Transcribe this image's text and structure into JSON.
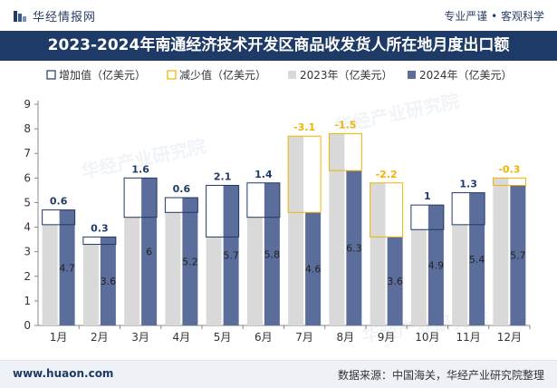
{
  "header": {
    "brand": "华经情报网",
    "tagline": "专业严谨 • 客观科学"
  },
  "title": "2023-2024年南通经济技术开发区商品收发货人所在地月度出口额",
  "footer": {
    "website": "www.huaon.com",
    "source": "数据来源：中国海关，华经产业研究院整理"
  },
  "colors": {
    "bar2023": "#d9d9d9",
    "bar2024": "#5b6d9a",
    "increase": "#1e3a66",
    "decrease": "#f0b400",
    "title_bg": "#1e3a66"
  },
  "chart_data": {
    "type": "bar",
    "categories": [
      "1月",
      "2月",
      "3月",
      "4月",
      "5月",
      "6月",
      "7月",
      "8月",
      "9月",
      "10月",
      "11月",
      "12月"
    ],
    "series": [
      {
        "name": "2023年（亿美元）",
        "values": [
          4.1,
          3.3,
          4.4,
          4.6,
          3.6,
          4.4,
          7.7,
          7.8,
          5.8,
          3.9,
          4.1,
          6.0
        ]
      },
      {
        "name": "2024年（亿美元）",
        "values": [
          4.7,
          3.6,
          6,
          5.2,
          5.7,
          5.8,
          4.6,
          6.3,
          3.6,
          4.9,
          5.4,
          5.7
        ]
      }
    ],
    "changes": [
      0.6,
      0.3,
      1.6,
      0.6,
      2.1,
      1.4,
      -3.1,
      -1.5,
      -2.2,
      1,
      1.3,
      -0.3
    ],
    "change_labels": [
      "0.6",
      "0.3",
      "1.6",
      "0.6",
      "2.1",
      "1.4",
      "-3.1",
      "-1.5",
      "-2.2",
      "1",
      "1.3",
      "-0.3"
    ],
    "value_labels": [
      "4.7",
      "3.6",
      "6",
      "5.2",
      "5.7",
      "5.8",
      "4.6",
      "6.3",
      "3.6",
      "4.9",
      "5.4",
      "5.7"
    ],
    "legend": [
      "增加值（亿美元）",
      "减少值（亿美元）",
      "2023年（亿美元）",
      "2024年（亿美元）"
    ],
    "legend_position": "top-left",
    "yticks": [
      "0",
      "1",
      "2",
      "3",
      "4",
      "5",
      "6",
      "7",
      "8",
      "9"
    ],
    "ylim": [
      0,
      9
    ],
    "grid": false,
    "watermark": "华经产业研究院"
  }
}
